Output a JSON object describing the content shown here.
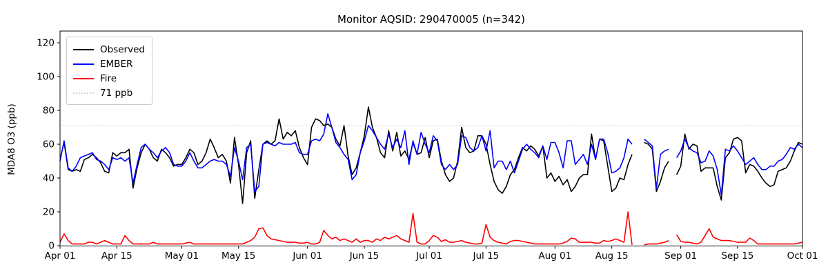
{
  "title": "Monitor AQSID: 290470005 (n=342)",
  "chart_data": {
    "type": "line",
    "title": "Monitor AQSID: 290470005 (n=342)",
    "xlabel": "",
    "ylabel": "MDA8 O3 (ppb)",
    "ylim": [
      0,
      127
    ],
    "yticks": [
      0,
      20,
      40,
      60,
      80,
      100,
      120
    ],
    "grid": false,
    "legend_position": "upper-left",
    "x_tick_labels": [
      "Apr 01",
      "Apr 15",
      "May 01",
      "May 15",
      "Jun 01",
      "Jun 15",
      "Jul 01",
      "Jul 15",
      "Aug 01",
      "Aug 15",
      "Sep 01",
      "Sep 15",
      "Oct 01"
    ],
    "x_tick_days": [
      0,
      14,
      30,
      44,
      61,
      75,
      91,
      105,
      122,
      136,
      153,
      167,
      183
    ],
    "x_range_days": [
      0,
      183
    ],
    "threshold": {
      "label": "71 ppb",
      "value": 71,
      "color": "#d3d3d3",
      "style": "dotted"
    },
    "series": [
      {
        "name": "Observed",
        "color": "#000000",
        "values": [
          51,
          61,
          45,
          44,
          45,
          44,
          51,
          52,
          54,
          52,
          49,
          44,
          43,
          55,
          53,
          55,
          55,
          57,
          34,
          46,
          55,
          60,
          57,
          52,
          50,
          57,
          55,
          52,
          47,
          48,
          48,
          52,
          57,
          55,
          48,
          50,
          55,
          63,
          58,
          52,
          54,
          50,
          37,
          64,
          48,
          25,
          55,
          62,
          28,
          45,
          60,
          62,
          60,
          62,
          75,
          63,
          67,
          65,
          68,
          58,
          52,
          48,
          70,
          75,
          74,
          71,
          72,
          70,
          63,
          59,
          71,
          53,
          42,
          46,
          55,
          65,
          82,
          70,
          64,
          55,
          52,
          68,
          56,
          67,
          53,
          56,
          51,
          61,
          54,
          55,
          64,
          52,
          62,
          63,
          50,
          42,
          38,
          40,
          50,
          70,
          58,
          55,
          56,
          65,
          65,
          60,
          48,
          38,
          33,
          31,
          35,
          42,
          45,
          52,
          58,
          56,
          59,
          57,
          53,
          59,
          40,
          43,
          38,
          41,
          36,
          39,
          32,
          35,
          40,
          42,
          42,
          66,
          51,
          63,
          62,
          47,
          32,
          34,
          40,
          39,
          48,
          54,
          null,
          null,
          61,
          60,
          57,
          32,
          38,
          46,
          50,
          null,
          42,
          47,
          66,
          57,
          60,
          59,
          44,
          46,
          46,
          46,
          35,
          27,
          52,
          55,
          63,
          64,
          62,
          43,
          48,
          47,
          44,
          40,
          37,
          35,
          36,
          44,
          45,
          46,
          50,
          56,
          61,
          60
        ]
      },
      {
        "name": "EMBER",
        "color": "#0000ff",
        "values": [
          50,
          62,
          46,
          44,
          47,
          52,
          53,
          54,
          55,
          51,
          50,
          48,
          45,
          52,
          51,
          52,
          50,
          52,
          37,
          48,
          58,
          60,
          57,
          55,
          52,
          56,
          58,
          55,
          48,
          47,
          47,
          50,
          55,
          50,
          46,
          46,
          48,
          50,
          51,
          50,
          50,
          48,
          41,
          58,
          50,
          39,
          58,
          60,
          32,
          35,
          60,
          61,
          60,
          59,
          61,
          60,
          60,
          60,
          61,
          55,
          54,
          54,
          62,
          63,
          62,
          66,
          78,
          70,
          61,
          58,
          54,
          51,
          39,
          42,
          55,
          62,
          71,
          68,
          64,
          60,
          57,
          66,
          58,
          63,
          58,
          68,
          48,
          62,
          54,
          67,
          60,
          55,
          65,
          62,
          48,
          45,
          48,
          45,
          48,
          65,
          64,
          58,
          56,
          58,
          65,
          56,
          68,
          46,
          50,
          50,
          45,
          50,
          43,
          50,
          57,
          60,
          57,
          55,
          52,
          59,
          51,
          61,
          61,
          55,
          46,
          62,
          62,
          48,
          51,
          54,
          48,
          60,
          51,
          63,
          63,
          55,
          43,
          44,
          46,
          52,
          63,
          60,
          null,
          null,
          63,
          61,
          59,
          34,
          54,
          56,
          57,
          null,
          52,
          56,
          63,
          58,
          56,
          55,
          49,
          50,
          56,
          53,
          45,
          30,
          57,
          56,
          59,
          56,
          52,
          48,
          50,
          52,
          48,
          45,
          45,
          47,
          47,
          50,
          51,
          54,
          58,
          57,
          60,
          58
        ]
      },
      {
        "name": "Fire",
        "color": "#ff0000",
        "values": [
          2,
          7,
          3,
          1,
          1,
          1,
          1,
          2,
          2,
          1,
          2,
          3,
          2,
          1,
          1,
          1,
          6,
          3,
          1,
          1,
          1,
          1,
          1,
          2,
          1,
          1,
          1,
          1,
          1,
          1,
          1,
          1.5,
          2,
          1,
          1,
          1,
          1,
          1,
          1,
          1,
          1,
          1,
          1,
          1,
          1,
          1,
          2,
          3,
          5,
          10,
          10.5,
          6,
          4,
          3.5,
          3,
          2.5,
          2,
          2,
          2,
          1.5,
          1.5,
          2,
          1,
          1,
          2,
          9,
          6,
          4,
          5,
          3,
          4,
          3,
          2,
          4,
          2,
          3,
          3,
          2,
          4,
          3,
          5,
          4,
          5,
          6,
          4,
          3,
          2,
          19,
          2,
          1,
          1,
          3,
          6,
          5,
          2.5,
          3.5,
          2,
          2,
          2.5,
          3,
          2,
          1.5,
          1,
          1,
          1.5,
          12.5,
          5,
          3,
          2,
          1.5,
          1,
          2.5,
          3,
          3,
          2.5,
          2,
          1.5,
          1,
          1,
          1,
          1,
          1,
          1,
          1,
          1.5,
          2.5,
          4.5,
          4,
          2,
          2,
          2,
          2,
          1.5,
          1.5,
          3,
          2.5,
          3,
          4,
          3,
          2,
          20,
          0.5,
          null,
          null,
          0.5,
          1,
          1,
          1,
          1.5,
          2,
          3,
          null,
          6.5,
          2.5,
          2,
          2,
          1.5,
          1,
          2,
          6,
          10,
          5,
          4,
          3,
          3,
          3,
          2.5,
          2,
          2,
          2,
          4.5,
          3,
          1,
          1,
          1,
          1,
          1,
          1,
          1,
          1,
          1,
          1,
          1.5,
          2
        ]
      }
    ],
    "legend_entries": [
      {
        "label": "Observed",
        "color": "#000000",
        "style": "solid"
      },
      {
        "label": "EMBER",
        "color": "#0000ff",
        "style": "solid"
      },
      {
        "label": "Fire",
        "color": "#ff0000",
        "style": "solid"
      },
      {
        "label": "71 ppb",
        "color": "#d3d3d3",
        "style": "dotted"
      }
    ]
  }
}
